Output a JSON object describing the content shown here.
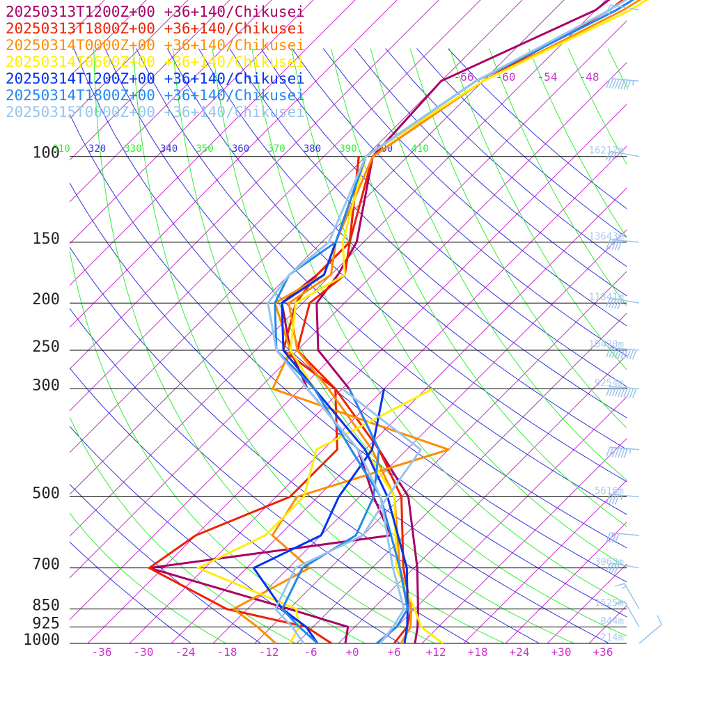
{
  "chart_data": {
    "type": "line",
    "title": "",
    "xlabel": "",
    "ylabel": "",
    "legend": "top-left",
    "grid": true,
    "pressure_ticks": [
      100,
      150,
      200,
      250,
      300,
      500,
      700,
      850,
      925,
      1000
    ],
    "temp_ticks": [
      -36,
      -30,
      -24,
      -18,
      -12,
      -6,
      0,
      6,
      12,
      18,
      24,
      30,
      36
    ],
    "temp_tick_labels": [
      "-36",
      "-30",
      "-24",
      "-18",
      "-12",
      "-6",
      "+0",
      "+6",
      "+12",
      "+18",
      "+24",
      "+30",
      "+36"
    ],
    "top_temp_labels": [
      "-66",
      "-60",
      "-54",
      "-48"
    ],
    "theta_labels": [
      "310",
      "320",
      "330",
      "340",
      "350",
      "360",
      "370",
      "380",
      "390",
      "400",
      "410"
    ],
    "heights": [
      {
        "p": 100,
        "label": "16212m"
      },
      {
        "p": 150,
        "label": "13643m"
      },
      {
        "p": 200,
        "label": "11841m"
      },
      {
        "p": 250,
        "label": "10420m"
      },
      {
        "p": 300,
        "label": "9254m"
      },
      {
        "p": 500,
        "label": "5616m"
      },
      {
        "p": 700,
        "label": "3063m"
      },
      {
        "p": 850,
        "label": "1525m"
      },
      {
        "p": 925,
        "label": "844m"
      },
      {
        "p": 1000,
        "label": "214m"
      }
    ],
    "series": [
      {
        "name": "20250313T1200Z+00 +36+140/Chikusei",
        "color": "#aa0066",
        "temperature": [
          [
            1000,
            9
          ],
          [
            925,
            7
          ],
          [
            850,
            4.5
          ],
          [
            700,
            -1.5
          ],
          [
            500,
            -13
          ],
          [
            400,
            -24
          ],
          [
            300,
            -37
          ],
          [
            250,
            -47
          ],
          [
            200,
            -54
          ],
          [
            175,
            -55
          ],
          [
            150,
            -57
          ],
          [
            100,
            -67
          ],
          [
            70,
            -68
          ],
          [
            50,
            -56
          ],
          [
            40,
            -54
          ]
        ],
        "dewpoint": [
          [
            1000,
            -1
          ],
          [
            925,
            -3
          ],
          [
            850,
            -14
          ],
          [
            700,
            -40
          ],
          [
            600,
            -10
          ],
          [
            500,
            -18
          ],
          [
            400,
            -27
          ],
          [
            300,
            -43
          ],
          [
            250,
            -51
          ],
          [
            200,
            -59
          ],
          [
            175,
            -58
          ],
          [
            150,
            -58
          ],
          [
            100,
            -69
          ]
        ]
      },
      {
        "name": "20250313T1800Z+00 +36+140/Chikusei",
        "color": "#ee2200",
        "temperature": [
          [
            1000,
            6
          ],
          [
            925,
            5.5
          ],
          [
            850,
            3.5
          ],
          [
            700,
            -3.5
          ],
          [
            500,
            -14
          ],
          [
            400,
            -24
          ],
          [
            300,
            -39
          ],
          [
            250,
            -50
          ],
          [
            200,
            -55
          ],
          [
            175,
            -54
          ],
          [
            150,
            -58
          ],
          [
            100,
            -67
          ],
          [
            70,
            -62
          ],
          [
            50,
            -54
          ],
          [
            40,
            -52
          ]
        ],
        "dewpoint": [
          [
            1000,
            -3
          ],
          [
            925,
            -9
          ],
          [
            850,
            -23
          ],
          [
            700,
            -40
          ],
          [
            600,
            -38
          ],
          [
            500,
            -30
          ],
          [
            400,
            -30
          ],
          [
            300,
            -39
          ],
          [
            250,
            -52
          ],
          [
            200,
            -57
          ],
          [
            175,
            -58
          ],
          [
            150,
            -58
          ],
          [
            100,
            -69
          ]
        ]
      },
      {
        "name": "20250314T0000Z+00 +36+140/Chikusei",
        "color": "#ff8c00",
        "temperature": [
          [
            1000,
            7
          ],
          [
            925,
            6
          ],
          [
            850,
            3.5
          ],
          [
            700,
            -4
          ],
          [
            500,
            -15
          ],
          [
            400,
            -25
          ],
          [
            300,
            -40
          ],
          [
            250,
            -50
          ],
          [
            200,
            -58
          ],
          [
            175,
            -56
          ],
          [
            150,
            -60
          ],
          [
            100,
            -67
          ],
          [
            70,
            -62
          ],
          [
            50,
            -52
          ],
          [
            40,
            -48
          ]
        ],
        "dewpoint": [
          [
            1000,
            -11
          ],
          [
            925,
            -16
          ],
          [
            850,
            -22
          ],
          [
            700,
            -17
          ],
          [
            600,
            -27
          ],
          [
            500,
            -29
          ],
          [
            400,
            -14
          ],
          [
            300,
            -48
          ],
          [
            250,
            -51
          ],
          [
            200,
            -60
          ],
          [
            175,
            -57
          ],
          [
            150,
            -60
          ],
          [
            100,
            -68
          ]
        ]
      },
      {
        "name": "20250314T0600Z+00 +36+140/Chikusei",
        "color": "#ffee00",
        "temperature": [
          [
            1000,
            13
          ],
          [
            925,
            7.5
          ],
          [
            850,
            4
          ],
          [
            700,
            -4.5
          ],
          [
            500,
            -15
          ],
          [
            400,
            -26
          ],
          [
            300,
            -42
          ],
          [
            250,
            -51
          ],
          [
            200,
            -57
          ],
          [
            175,
            -54
          ],
          [
            150,
            -59
          ],
          [
            100,
            -68
          ],
          [
            70,
            -62
          ],
          [
            50,
            -51
          ],
          [
            40,
            -47
          ]
        ],
        "dewpoint": [
          [
            1000,
            -9
          ],
          [
            925,
            -10
          ],
          [
            850,
            -13
          ],
          [
            700,
            -33
          ],
          [
            600,
            -28
          ],
          [
            500,
            -28
          ],
          [
            400,
            -33
          ],
          [
            300,
            -25
          ]
        ]
      },
      {
        "name": "20250314T1200Z+00 +36+140/Chikusei",
        "color": "#0033ee",
        "temperature": [
          [
            1000,
            7.5
          ],
          [
            925,
            5.5
          ],
          [
            850,
            3
          ],
          [
            700,
            -3
          ],
          [
            500,
            -16
          ],
          [
            400,
            -26
          ],
          [
            300,
            -42
          ],
          [
            250,
            -52
          ],
          [
            200,
            -59
          ],
          [
            175,
            -57
          ],
          [
            150,
            -60
          ],
          [
            100,
            -68
          ],
          [
            70,
            -63
          ],
          [
            50,
            -53
          ],
          [
            40,
            -49
          ]
        ],
        "dewpoint": [
          [
            1000,
            -5
          ],
          [
            925,
            -9
          ],
          [
            850,
            -15
          ],
          [
            700,
            -25
          ],
          [
            600,
            -20
          ],
          [
            500,
            -23
          ],
          [
            400,
            -25
          ],
          [
            300,
            -32
          ]
        ]
      },
      {
        "name": "20250314T1800Z+00 +36+140/Chikusei",
        "color": "#2288ee",
        "temperature": [
          [
            1000,
            3.5
          ],
          [
            925,
            4
          ],
          [
            850,
            3
          ],
          [
            700,
            -4
          ],
          [
            500,
            -17
          ],
          [
            400,
            -28
          ],
          [
            300,
            -42
          ],
          [
            250,
            -53
          ],
          [
            200,
            -60
          ],
          [
            175,
            -62
          ],
          [
            150,
            -60
          ],
          [
            100,
            -68
          ],
          [
            70,
            -63
          ],
          [
            50,
            -53
          ],
          [
            40,
            -49
          ]
        ],
        "dewpoint": [
          [
            1000,
            -5
          ],
          [
            925,
            -10
          ],
          [
            850,
            -15
          ],
          [
            700,
            -18
          ],
          [
            600,
            -15
          ],
          [
            500,
            -18
          ],
          [
            400,
            -24
          ],
          [
            300,
            -37
          ]
        ]
      },
      {
        "name": "20250315T0000Z+00 +36+140/Chikusei",
        "color": "#99c4ee",
        "temperature": [
          [
            1000,
            4
          ],
          [
            925,
            3.5
          ],
          [
            850,
            2.5
          ],
          [
            700,
            -5
          ],
          [
            500,
            -17
          ],
          [
            400,
            -27
          ],
          [
            300,
            -43
          ],
          [
            250,
            -53
          ],
          [
            200,
            -61
          ],
          [
            175,
            -62
          ],
          [
            150,
            -61
          ],
          [
            100,
            -68
          ],
          [
            70,
            -63
          ],
          [
            50,
            -54
          ],
          [
            40,
            -50
          ]
        ],
        "dewpoint": [
          [
            1000,
            -7
          ],
          [
            925,
            -11
          ],
          [
            850,
            -16
          ],
          [
            700,
            -19
          ],
          [
            600,
            -14
          ],
          [
            500,
            -16
          ],
          [
            400,
            -18
          ],
          [
            300,
            -38
          ]
        ]
      }
    ],
    "wind_barbs": [
      {
        "p": 1000,
        "speed_kt": 10,
        "dir_deg": 50
      },
      {
        "p": 925,
        "speed_kt": 10,
        "dir_deg": 330
      },
      {
        "p": 850,
        "speed_kt": 15,
        "dir_deg": 330
      },
      {
        "p": 700,
        "speed_kt": 40,
        "dir_deg": 280
      },
      {
        "p": 600,
        "speed_kt": 40,
        "dir_deg": 275
      },
      {
        "p": 500,
        "speed_kt": 45,
        "dir_deg": 275
      },
      {
        "p": 400,
        "speed_kt": 75,
        "dir_deg": 275
      },
      {
        "p": 300,
        "speed_kt": 100,
        "dir_deg": 275
      },
      {
        "p": 250,
        "speed_kt": 100,
        "dir_deg": 275
      },
      {
        "p": 200,
        "speed_kt": 50,
        "dir_deg": 280
      },
      {
        "p": 150,
        "speed_kt": 50,
        "dir_deg": 275
      },
      {
        "p": 100,
        "speed_kt": 30,
        "dir_deg": 280
      },
      {
        "p": 70,
        "speed_kt": 85,
        "dir_deg": 275
      },
      {
        "p": 50,
        "speed_kt": 20,
        "dir_deg": 280
      }
    ]
  }
}
